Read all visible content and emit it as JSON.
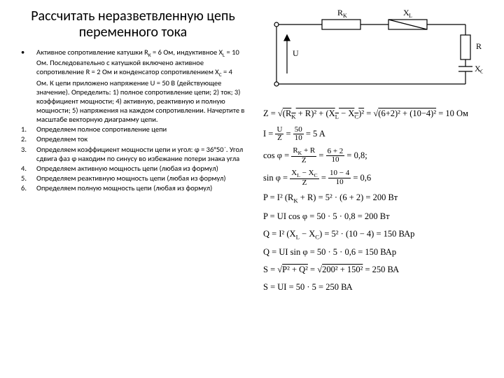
{
  "title": "Рассчитать неразветвленную цепь переменного тока",
  "problem": "Активное сопротивление катушки R<sub>K</sub> = 6 Ом, индуктивное X<sub>L</sub> = 10 Ом. Последовательно с катушкой включено активное сопротивление R = 2 Ом и конденсатор сопротивлением X<sub>C</sub> = 4 Ом. К цепи приложено напряжение U = 50 В (действующее значение). Определить: 1) полное сопротивление цепи; 2) ток; 3) коэффициент мощности; 4) активную, реактивную и полную мощности; 5) напряжения на каждом сопротивлении. Начертите в масштабе векторную диаграмму цепи.",
  "steps": [
    {
      "n": "1.",
      "t": "Определяем полное сопротивление цепи"
    },
    {
      "n": "2.",
      "t": "Определяем ток"
    },
    {
      "n": "3.",
      "t": "Определяем коэффициент мощности цепи и угол: φ = 36°50´. Угол сдвига фаз φ находим по синусу во избежание потери знака угла"
    },
    {
      "n": "4.",
      "t": "Определяем активную мощность цепи (любая из формул)"
    },
    {
      "n": "5.",
      "t": "Определяем реактивную мощность цепи (любая из формул)"
    },
    {
      "n": "6.",
      "t": "Определяем полную мощность цепи (любая из формул)"
    }
  ],
  "circuit": {
    "labels": {
      "Rk": "R<sub>K</sub>",
      "Xl": "X<sub>L</sub>",
      "R": "R",
      "Xc": "X<sub>C</sub>",
      "U": "U"
    },
    "stroke": "#000000"
  },
  "formulas": [
    "Z = √<span class='sqrt-top'>(R<sub>K</sub> + R)² + (X<sub>L</sub> − X<sub>C</sub>)²</span> = √<span class='sqrt-top'>(6+2)² + (10−4)²</span> = 10 Ом",
    "I = <span class='frac'><span class='num'>U</span><span class='den'>Z</span></span> = <span class='frac'><span class='num'>50</span><span class='den'>10</span></span> = 5 A",
    "cos φ = <span class='frac'><span class='num'>R<sub>K</sub> + R</span><span class='den'>Z</span></span> = <span class='frac'><span class='num'>6 + 2</span><span class='den'>10</span></span> = 0,8;",
    "sin φ = <span class='frac'><span class='num'>X<sub>L</sub> − X<sub>C</sub></span><span class='den'>Z</span></span> = <span class='frac'><span class='num'>10 − 4</span><span class='den'>10</span></span> = 0,6",
    "P = I² (R<sub>K</sub> + R) = 5² · (6 + 2) = 200 Вт",
    "P = UI cos φ = 50 · 5 · 0,8 = 200 Вт",
    "Q = I² (X<sub>L</sub> − X<sub>C</sub>) = 5² · (10 − 4) = 150 ВАр",
    "Q = UI sin φ = 50 · 5 · 0,6 = 150 ВАр",
    "S = √<span class='sqrt-top'>P² + Q²</span> = √<span class='sqrt-top'>200² + 150²</span> = 250 ВА",
    "S = UI = 50 · 5 = 250 ВА"
  ],
  "colors": {
    "bg": "#ffffff",
    "text": "#000000"
  }
}
